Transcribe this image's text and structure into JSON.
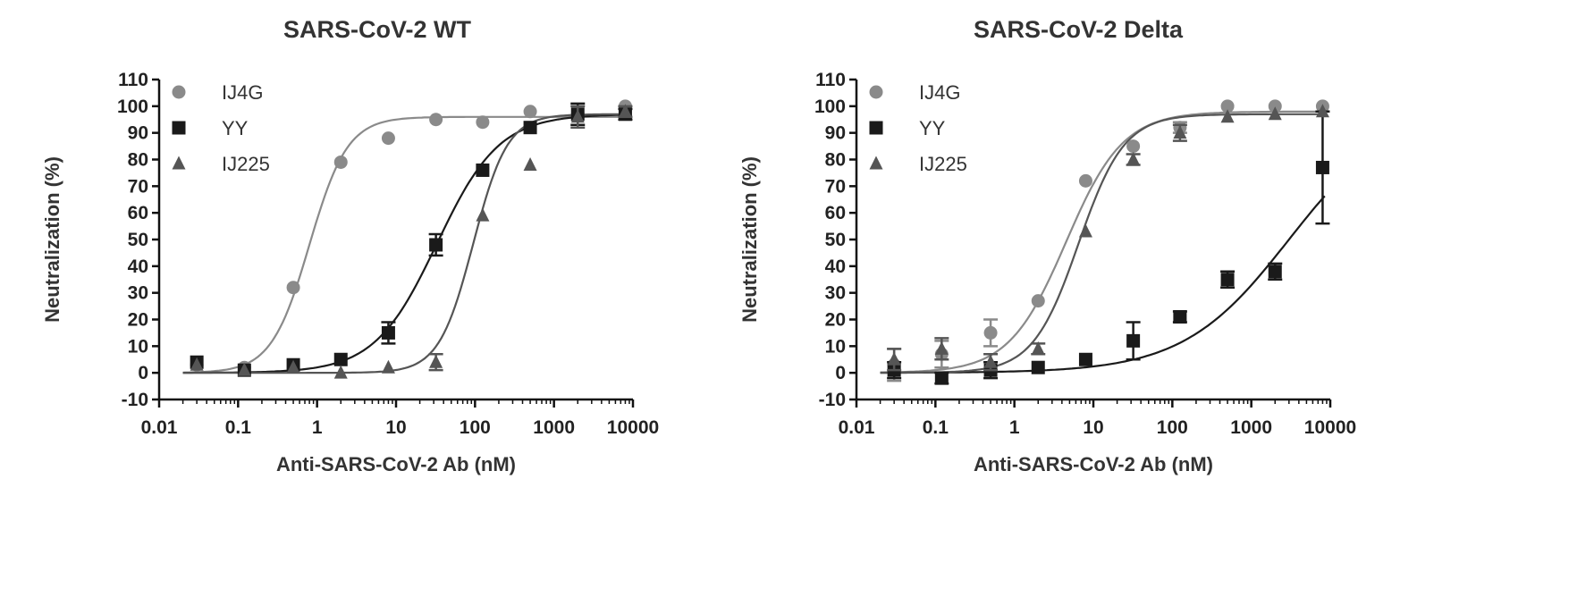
{
  "chart_data": [
    {
      "type": "scatter",
      "title": "SARS-CoV-2 WT",
      "xlabel": "Anti-SARS-CoV-2 Ab (nM)",
      "ylabel": "Neutralization (%)",
      "xscale": "log",
      "xlim": [
        0.01,
        10000
      ],
      "ylim": [
        -10,
        110
      ],
      "xticks": [
        "0.01",
        "0.1",
        "1",
        "10",
        "100",
        "1000",
        "10000"
      ],
      "yticks": [
        "-10",
        "0",
        "10",
        "20",
        "30",
        "40",
        "50",
        "60",
        "70",
        "80",
        "90",
        "100",
        "110"
      ],
      "legend_position": "top-left",
      "grid": false,
      "series": [
        {
          "name": "IJ4G",
          "marker": "circle",
          "color": "#8a8a8a",
          "x": [
            0.03,
            0.12,
            0.5,
            2,
            8,
            32,
            125,
            500,
            2000,
            8000
          ],
          "y": [
            3,
            2,
            32,
            79,
            88,
            95,
            94,
            98,
            97,
            100
          ],
          "err": [
            1,
            1,
            1,
            1,
            1,
            1,
            1,
            1,
            1,
            1
          ],
          "fit": {
            "bottom": 0,
            "top": 96,
            "ec50": 0.8,
            "hill": 1.8
          }
        },
        {
          "name": "YY",
          "marker": "square",
          "color": "#1a1a1a",
          "x": [
            0.03,
            0.12,
            0.5,
            2,
            8,
            32,
            125,
            500,
            2000,
            8000
          ],
          "y": [
            4,
            1,
            3,
            5,
            15,
            48,
            76,
            92,
            97,
            97
          ],
          "err": [
            1,
            1,
            1,
            1,
            4,
            4,
            1,
            1,
            4,
            2
          ],
          "fit": {
            "bottom": 0,
            "top": 97,
            "ec50": 33,
            "hill": 1.1
          }
        },
        {
          "name": "IJ225",
          "marker": "triangle",
          "color": "#555555",
          "x": [
            0.03,
            0.12,
            0.5,
            2,
            8,
            32,
            125,
            500,
            2000,
            8000
          ],
          "y": [
            3,
            1,
            2,
            0,
            2,
            4,
            59,
            78,
            96,
            98
          ],
          "err": [
            1,
            1,
            1,
            1,
            1,
            3,
            1,
            1,
            4,
            2
          ],
          "fit": {
            "bottom": 0,
            "top": 97,
            "ec50": 95,
            "hill": 2.0
          }
        }
      ]
    },
    {
      "type": "scatter",
      "title": "SARS-CoV-2 Delta",
      "xlabel": "Anti-SARS-CoV-2 Ab (nM)",
      "ylabel": "Neutralization (%)",
      "xscale": "log",
      "xlim": [
        0.01,
        10000
      ],
      "ylim": [
        -10,
        110
      ],
      "xticks": [
        "0.01",
        "0.1",
        "1",
        "10",
        "100",
        "1000",
        "10000"
      ],
      "yticks": [
        "-10",
        "0",
        "10",
        "20",
        "30",
        "40",
        "50",
        "60",
        "70",
        "80",
        "90",
        "100",
        "110"
      ],
      "legend_position": "top-left",
      "grid": false,
      "series": [
        {
          "name": "IJ4G",
          "marker": "circle",
          "color": "#8a8a8a",
          "x": [
            0.03,
            0.12,
            0.5,
            2,
            8,
            32,
            125,
            500,
            2000,
            8000
          ],
          "y": [
            3,
            7,
            15,
            27,
            72,
            85,
            92,
            100,
            100,
            100
          ],
          "err": [
            6,
            5,
            5,
            1,
            1,
            1,
            2,
            1,
            1,
            1
          ],
          "fit": {
            "bottom": 0,
            "top": 98,
            "ec50": 4.5,
            "hill": 1.2
          }
        },
        {
          "name": "YY",
          "marker": "square",
          "color": "#1a1a1a",
          "x": [
            0.03,
            0.12,
            0.5,
            2,
            8,
            32,
            125,
            500,
            2000,
            8000
          ],
          "y": [
            1,
            -2,
            1,
            2,
            5,
            12,
            21,
            35,
            38,
            77
          ],
          "err": [
            3,
            2,
            3,
            1,
            1,
            7,
            2,
            3,
            3,
            21
          ],
          "fit": {
            "bottom": 0,
            "top": 100,
            "ec50": 3000,
            "hill": 0.65
          }
        },
        {
          "name": "IJ225",
          "marker": "triangle",
          "color": "#555555",
          "x": [
            0.03,
            0.12,
            0.5,
            2,
            8,
            32,
            125,
            500,
            2000,
            8000
          ],
          "y": [
            5,
            9,
            4,
            9,
            53,
            80,
            90,
            96,
            97,
            98
          ],
          "err": [
            4,
            4,
            3,
            2,
            1,
            2,
            3,
            1,
            1,
            1
          ],
          "fit": {
            "bottom": 0,
            "top": 97,
            "ec50": 6.5,
            "hill": 1.5
          }
        }
      ]
    }
  ]
}
